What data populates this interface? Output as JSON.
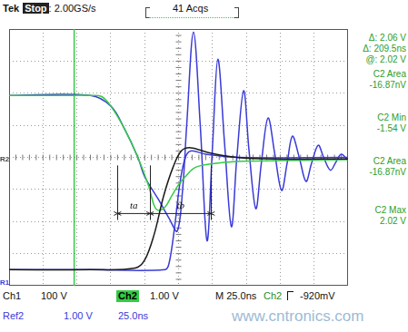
{
  "chart_data": {
    "type": "line",
    "marker": "none",
    "line_style": "solid",
    "grid": true,
    "tick_labels": false,
    "xlim": [
      0,
      250
    ],
    "xticks": [
      0,
      25,
      50,
      75,
      100,
      125,
      150,
      175,
      200,
      225,
      250
    ],
    "ylim": [
      -4,
      4
    ],
    "yticks": [
      -4,
      -3,
      -2,
      -1,
      0,
      1,
      2,
      3,
      4
    ],
    "series": [
      {
        "color": "#1a1a1a",
        "x": [
          0,
          60,
          93,
          100,
          107,
          114,
          121,
          127,
          134,
          147,
          168,
          194,
          250
        ],
        "values": [
          -3.5,
          -3.5,
          -3.45,
          -3.2,
          -2.4,
          -1.2,
          -0.3,
          0.2,
          0.3,
          0.15,
          0.0,
          -0.05,
          -0.05
        ]
      },
      {
        "color": "#33cc44",
        "x": [
          0,
          20,
          40,
          60,
          68,
          75,
          85,
          95,
          103,
          107,
          110,
          115,
          120,
          125,
          130,
          137,
          150,
          168,
          200,
          250
        ],
        "values": [
          1.93,
          1.93,
          1.93,
          1.93,
          1.9,
          1.6,
          0.9,
          0.0,
          -0.9,
          -1.5,
          -1.65,
          -1.55,
          -1.2,
          -0.85,
          -0.6,
          -0.32,
          -0.2,
          -0.13,
          -0.1,
          -0.07
        ]
      },
      {
        "color": "#3a3ad8",
        "x": [
          0,
          60,
          115,
          118,
          122,
          126,
          130,
          134,
          145,
          170,
          250
        ],
        "values": [
          -3.5,
          -3.5,
          -3.5,
          -3.3,
          -2.2,
          -0.8,
          0.0,
          0.2,
          0.1,
          0.0,
          0.0
        ]
      },
      {
        "color": "#3a3ad8",
        "x": [
          0,
          60,
          75,
          85,
          95,
          100,
          110,
          118,
          124,
          128,
          131,
          136,
          141,
          146,
          150,
          154,
          159,
          164,
          168,
          173,
          177,
          182,
          186,
          191,
          196,
          201,
          205,
          209,
          214,
          219,
          223,
          228,
          232,
          237,
          241,
          245,
          250
        ],
        "values": [
          1.93,
          1.93,
          1.6,
          0.9,
          0.0,
          -0.6,
          -1.3,
          -1.9,
          -2.3,
          -1.0,
          1.0,
          3.9,
          1.0,
          -2.6,
          0.3,
          3.06,
          0.4,
          -2.16,
          0.0,
          2.08,
          0.2,
          -1.6,
          -0.2,
          1.23,
          0.1,
          -1.03,
          -0.2,
          0.66,
          0.0,
          -0.75,
          -0.2,
          0.38,
          0.0,
          -0.4,
          -0.15,
          0.1,
          -0.1
        ]
      }
    ],
    "cursor": {
      "x": 48,
      "color": "#33cc44"
    },
    "brackets": {
      "edges": [
        80,
        104,
        149
      ],
      "labels": [
        "ta",
        "tb"
      ],
      "y": -1.75,
      "top": -0.25,
      "bottom": -1.95
    },
    "channel_markers": [
      {
        "label": "R2",
        "y": -0.1
      },
      {
        "label": "R1",
        "y": -3.95
      }
    ],
    "header": {
      "brand": "Tek",
      "state": "Stop",
      "rate": ": 2.00GS/s",
      "acquisitions": "41 Acqs"
    },
    "readouts": [
      "Δ: 2.06 V",
      "Δ: 209.5ns",
      "@: 2.02 V",
      "C2 Area",
      "-16.87nV",
      "C2 Min",
      "-1.54 V",
      "C2 Area",
      "-16.87nV",
      "C2 Max",
      "2.02 V"
    ],
    "footer": [
      "Ch1",
      "100 V",
      "Ch2",
      "1.00 V",
      "M 25.0ns",
      "Ch2",
      "-920mV",
      "Ref2",
      "1.00 V",
      "25.0ns"
    ],
    "watermark": "www.cntronics.com"
  }
}
